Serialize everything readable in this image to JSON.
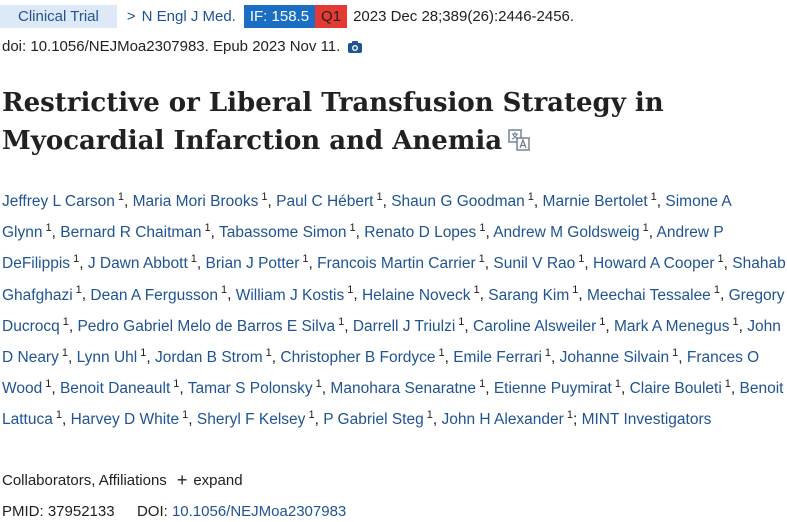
{
  "header": {
    "article_type": "Clinical Trial",
    "journal": "N Engl J Med.",
    "impact_factor": "IF: 158.5",
    "quartile": "Q1",
    "citation": "2023 Dec 28;389(26):2446-2456."
  },
  "doi_line": "doi: 10.1056/NEJMoa2307983. Epub 2023 Nov 11.",
  "title": "Restrictive or Liberal Transfusion Strategy in Myocardial Infarction and Anemia",
  "authors": [
    {
      "name": "Jeffrey L Carson",
      "aff": "1"
    },
    {
      "name": "Maria Mori Brooks",
      "aff": "1"
    },
    {
      "name": "Paul C Hébert",
      "aff": "1"
    },
    {
      "name": "Shaun G Goodman",
      "aff": "1"
    },
    {
      "name": "Marnie Bertolet",
      "aff": "1"
    },
    {
      "name": "Simone A Glynn",
      "aff": "1"
    },
    {
      "name": "Bernard R Chaitman",
      "aff": "1"
    },
    {
      "name": "Tabassome Simon",
      "aff": "1"
    },
    {
      "name": "Renato D Lopes",
      "aff": "1"
    },
    {
      "name": "Andrew M Goldsweig",
      "aff": "1"
    },
    {
      "name": "Andrew P DeFilippis",
      "aff": "1"
    },
    {
      "name": "J Dawn Abbott",
      "aff": "1"
    },
    {
      "name": "Brian J Potter",
      "aff": "1"
    },
    {
      "name": "Francois Martin Carrier",
      "aff": "1"
    },
    {
      "name": "Sunil V Rao",
      "aff": "1"
    },
    {
      "name": "Howard A Cooper",
      "aff": "1"
    },
    {
      "name": "Shahab Ghafghazi",
      "aff": "1"
    },
    {
      "name": "Dean A Fergusson",
      "aff": "1"
    },
    {
      "name": "William J Kostis",
      "aff": "1"
    },
    {
      "name": "Helaine Noveck",
      "aff": "1"
    },
    {
      "name": "Sarang Kim",
      "aff": "1"
    },
    {
      "name": "Meechai Tessalee",
      "aff": "1"
    },
    {
      "name": "Gregory Ducrocq",
      "aff": "1"
    },
    {
      "name": "Pedro Gabriel Melo de Barros E Silva",
      "aff": "1"
    },
    {
      "name": "Darrell J Triulzi",
      "aff": "1"
    },
    {
      "name": "Caroline Alsweiler",
      "aff": "1"
    },
    {
      "name": "Mark A Menegus",
      "aff": "1"
    },
    {
      "name": "John D Neary",
      "aff": "1"
    },
    {
      "name": "Lynn Uhl",
      "aff": "1"
    },
    {
      "name": "Jordan B Strom",
      "aff": "1"
    },
    {
      "name": "Christopher B Fordyce",
      "aff": "1"
    },
    {
      "name": "Emile Ferrari",
      "aff": "1"
    },
    {
      "name": "Johanne Silvain",
      "aff": "1"
    },
    {
      "name": "Frances O Wood",
      "aff": "1"
    },
    {
      "name": "Benoit Daneault",
      "aff": "1"
    },
    {
      "name": "Tamar S Polonsky",
      "aff": "1"
    },
    {
      "name": "Manohara Senaratne",
      "aff": "1"
    },
    {
      "name": "Etienne Puymirat",
      "aff": "1"
    },
    {
      "name": "Claire Bouleti",
      "aff": "1"
    },
    {
      "name": "Benoit Lattuca",
      "aff": "1"
    },
    {
      "name": "Harvey D White",
      "aff": "1"
    },
    {
      "name": "Sheryl F Kelsey",
      "aff": "1"
    },
    {
      "name": "P Gabriel Steg",
      "aff": "1"
    },
    {
      "name": "John H Alexander",
      "aff": "1"
    }
  ],
  "group_author": "MINT Investigators",
  "collaborators": {
    "label": "Collaborators, Affiliations",
    "expand_label": "expand"
  },
  "identifiers": {
    "pmid_label": "PMID:",
    "pmid": "37952133",
    "doi_label": "DOI:",
    "doi": "10.1056/NEJMoa2307983"
  },
  "icons": {
    "journal": "chevron-right-icon",
    "screenshot": "camera-icon",
    "translate": "translate-icon",
    "expand": "plus-icon"
  },
  "colors": {
    "link": "#205493",
    "article_type_bg": "#dde9f7",
    "if_badge": "#1a6fc4",
    "quartile_badge": "#e53935"
  }
}
